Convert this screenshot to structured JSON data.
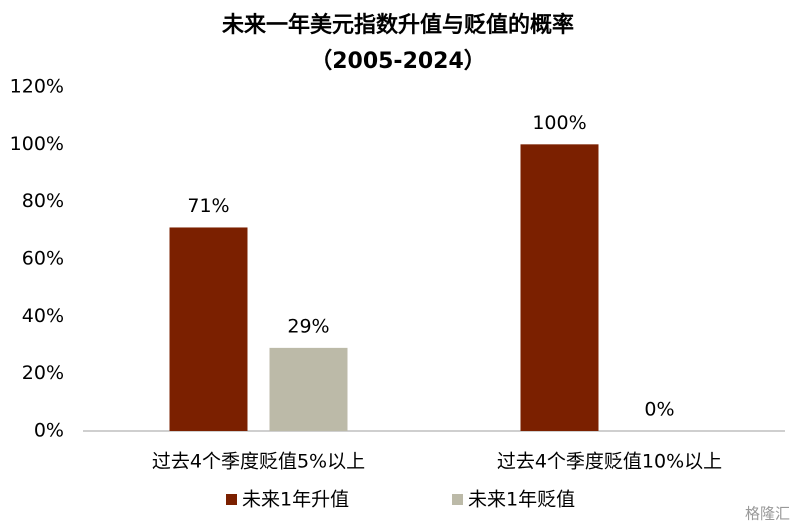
{
  "chart_data": {
    "type": "bar",
    "title": "未来一年美元指数升值与贬值的概率",
    "subtitle": "（2005-2024）",
    "categories": [
      "过去4个季度贬值5%以上",
      "过去4个季度贬值10%以上"
    ],
    "series": [
      {
        "name": "未来1年升值",
        "color": "#7b2000",
        "values": [
          71,
          100
        ],
        "value_labels": [
          "71%",
          "100%"
        ]
      },
      {
        "name": "未来1年贬值",
        "color": "#bcbaa8",
        "values": [
          29,
          0
        ],
        "value_labels": [
          "29%",
          "0%"
        ]
      }
    ],
    "ylim": [
      0,
      120
    ],
    "yticks": [
      {
        "value": 0,
        "label": "0%"
      },
      {
        "value": 20,
        "label": "20%"
      },
      {
        "value": 40,
        "label": "40%"
      },
      {
        "value": 60,
        "label": "60%"
      },
      {
        "value": 80,
        "label": "80%"
      },
      {
        "value": 100,
        "label": "100%"
      },
      {
        "value": 120,
        "label": "120%"
      }
    ],
    "grid": false,
    "legend": "bottom",
    "watermark": "格隆汇"
  }
}
